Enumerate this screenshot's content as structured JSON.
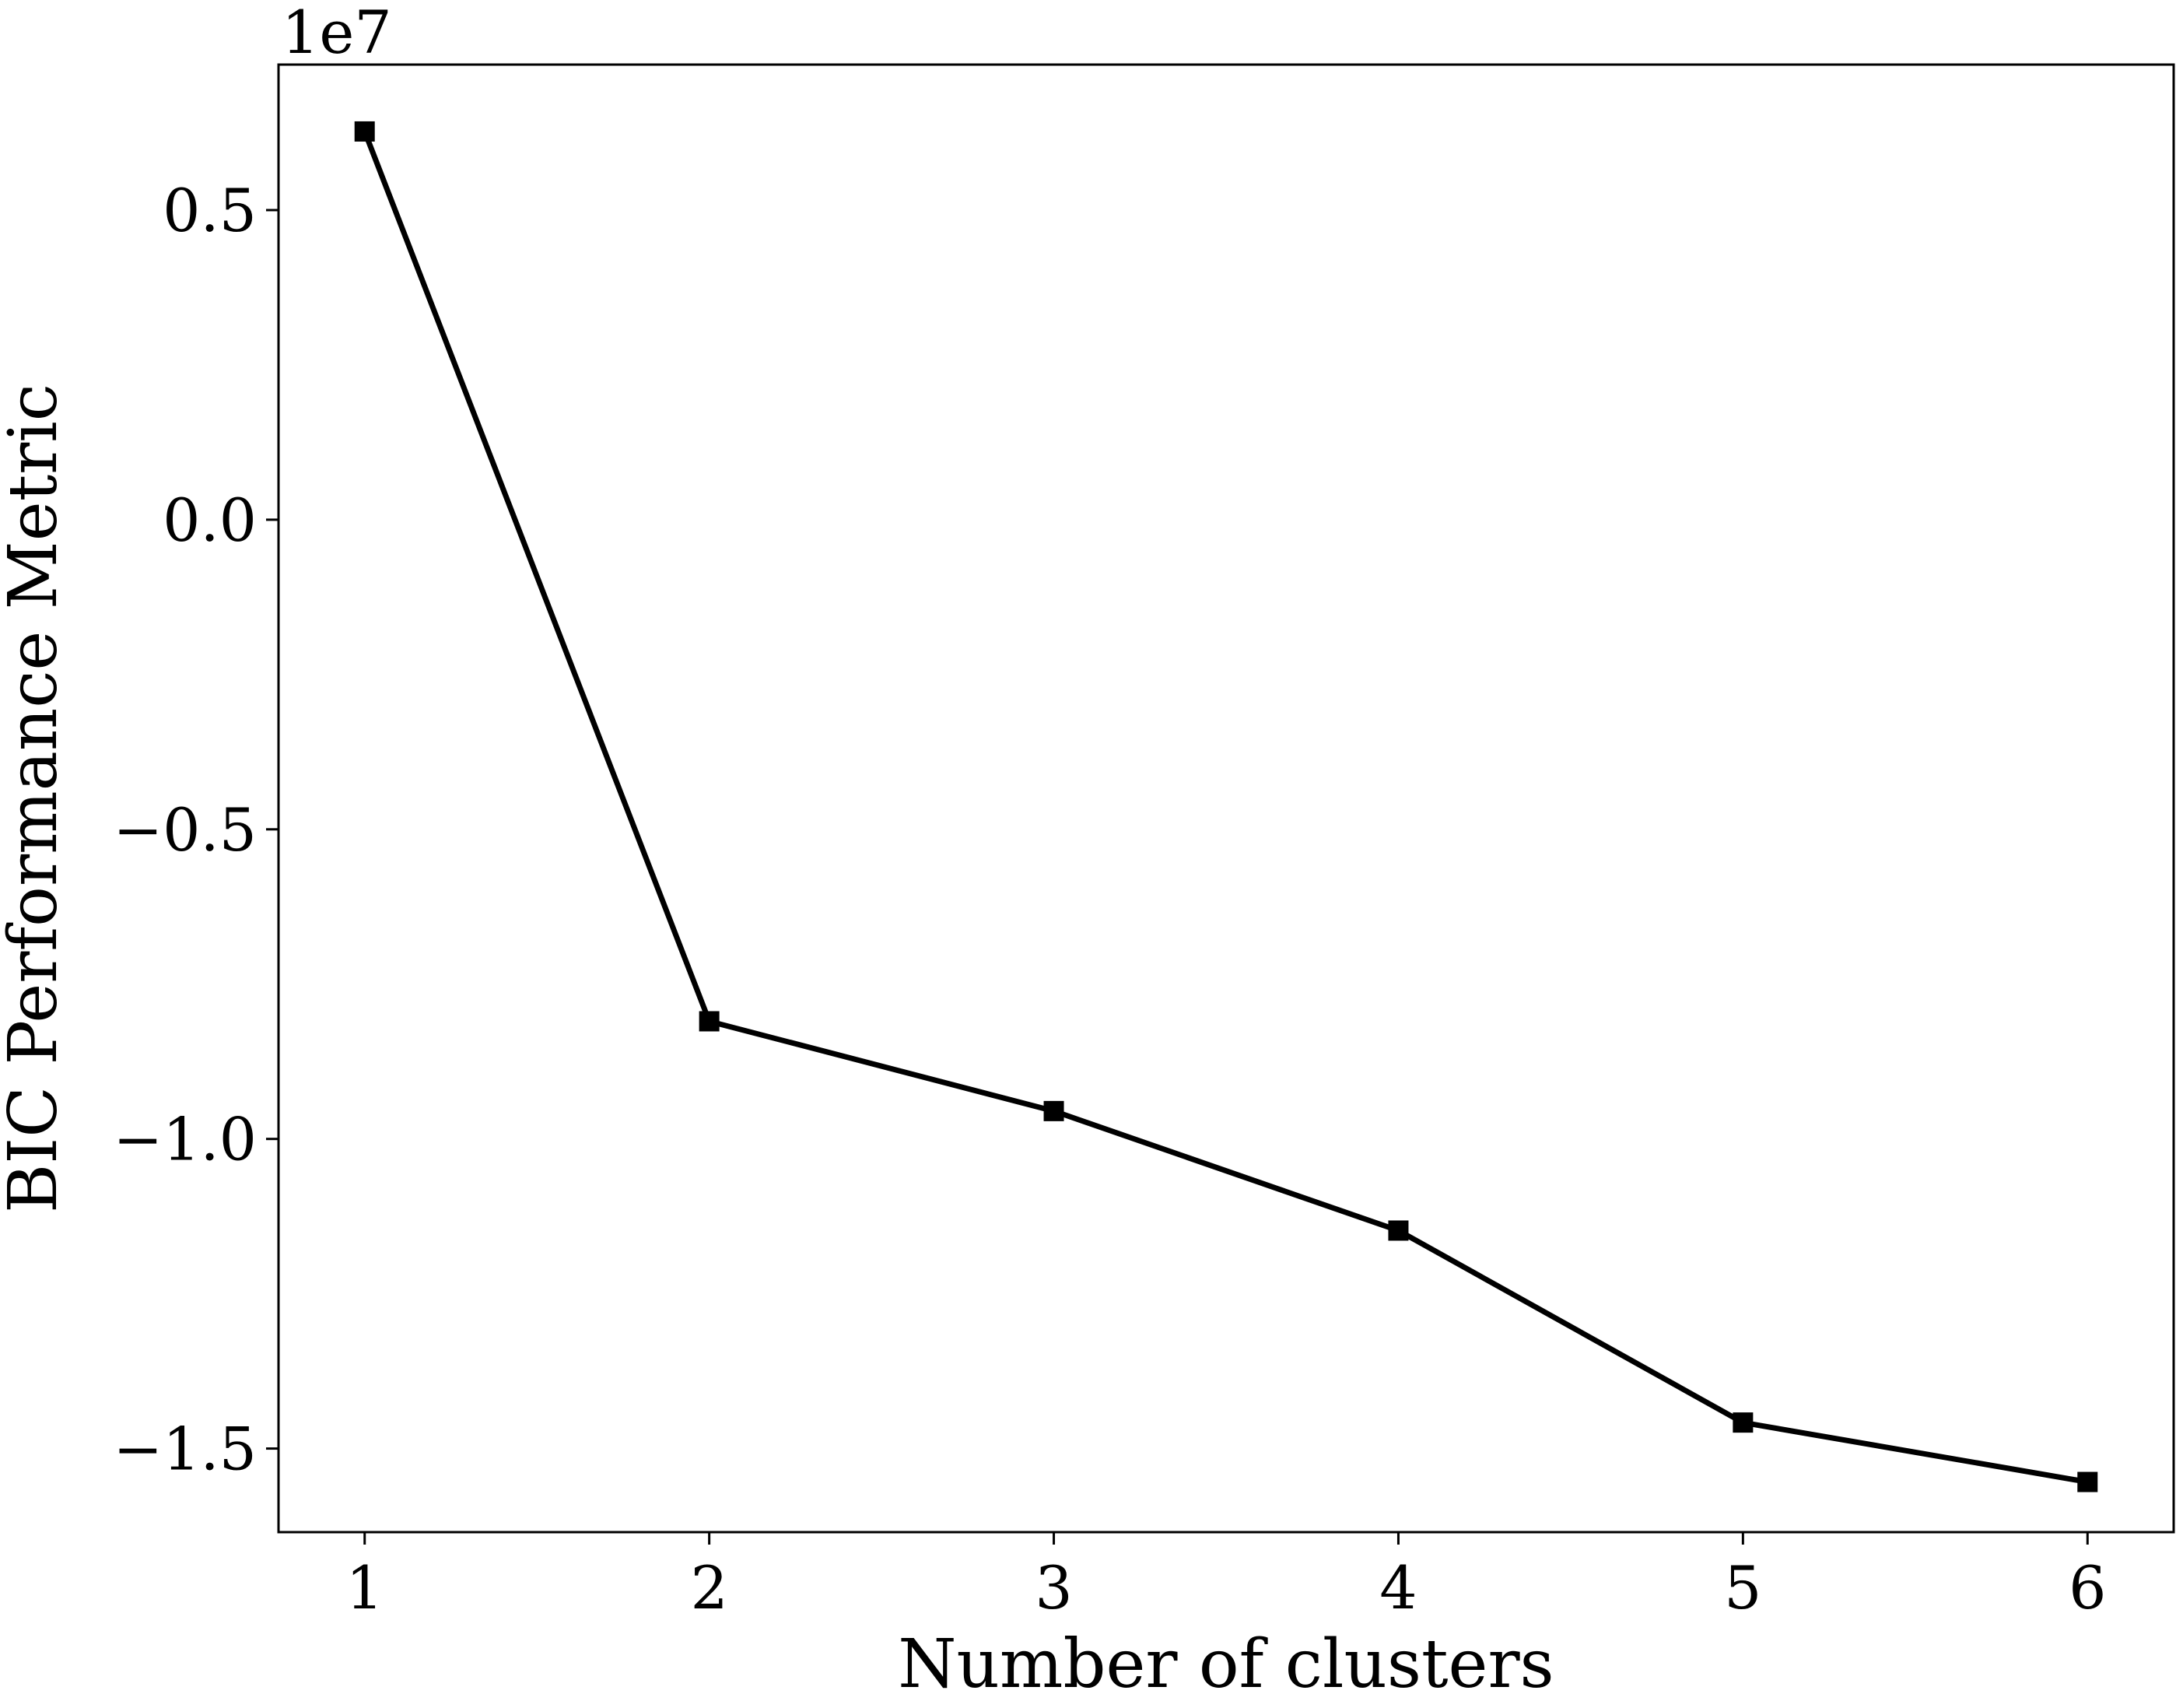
{
  "chart_data": {
    "type": "line",
    "x": [
      1,
      2,
      3,
      4,
      5,
      6
    ],
    "series": [
      {
        "values": [
          6270000,
          -8100000,
          -9550000,
          -11480000,
          -14580000,
          -15540000
        ]
      }
    ],
    "xlabel": "Number of clusters",
    "ylabel": "BIC Performance Metric",
    "y_offset_label": "1e7",
    "xlim": [
      0.75,
      6.25
    ],
    "ylim": [
      -16350000,
      7350000
    ],
    "xticks": [
      1,
      2,
      3,
      4,
      5,
      6
    ],
    "xtick_labels": [
      "1",
      "2",
      "3",
      "4",
      "5",
      "6"
    ],
    "yticks": [
      5000000,
      0,
      -5000000,
      -10000000,
      -15000000
    ],
    "ytick_labels": [
      "0.5",
      "0.0",
      "−0.5",
      "−1.0",
      "−1.5"
    ],
    "marker": "square",
    "line_color": "#000000",
    "grid": false,
    "legend": "none"
  }
}
